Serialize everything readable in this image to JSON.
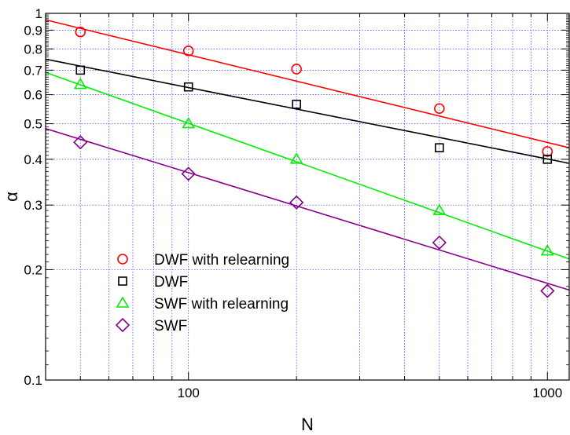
{
  "chart_data": {
    "type": "scatter",
    "xlabel": "N",
    "ylabel": "α",
    "x_scale": "log",
    "y_scale": "log",
    "xlim": [
      40,
      1150
    ],
    "ylim": [
      0.1,
      1
    ],
    "grid": true,
    "x_tick_labels": [
      "100",
      "1000"
    ],
    "y_tick_labels": [
      "0.1",
      "0.2",
      "0.3",
      "0.4",
      "0.5",
      "0.6",
      "0.7",
      "0.8",
      "0.9",
      "1"
    ],
    "legend_position": "bottom-left",
    "series": [
      {
        "name": "DWF with relearning",
        "marker": "circle",
        "color": "#ff0000",
        "x": [
          50,
          100,
          200,
          500,
          1000
        ],
        "y": [
          0.89,
          0.79,
          0.705,
          0.55,
          0.42
        ],
        "fit_line": {
          "x": [
            40,
            1150
          ],
          "y": [
            0.96,
            0.43
          ]
        }
      },
      {
        "name": "DWF",
        "marker": "square",
        "color": "#000000",
        "x": [
          50,
          100,
          200,
          500,
          1000
        ],
        "y": [
          0.7,
          0.63,
          0.565,
          0.43,
          0.4
        ],
        "fit_line": {
          "x": [
            40,
            1150
          ],
          "y": [
            0.75,
            0.39
          ]
        }
      },
      {
        "name": "SWF with relearning",
        "marker": "triangle",
        "color": "#00ee00",
        "x": [
          50,
          100,
          200,
          500,
          1000
        ],
        "y": [
          0.64,
          0.5,
          0.4,
          0.29,
          0.225
        ],
        "fit_line": {
          "x": [
            40,
            1150
          ],
          "y": [
            0.69,
            0.214
          ]
        }
      },
      {
        "name": "SWF",
        "marker": "diamond",
        "color": "#880088",
        "x": [
          50,
          100,
          200,
          500,
          1000
        ],
        "y": [
          0.445,
          0.365,
          0.305,
          0.237,
          0.175
        ],
        "fit_line": {
          "x": [
            40,
            1150
          ],
          "y": [
            0.485,
            0.176
          ]
        }
      }
    ]
  }
}
